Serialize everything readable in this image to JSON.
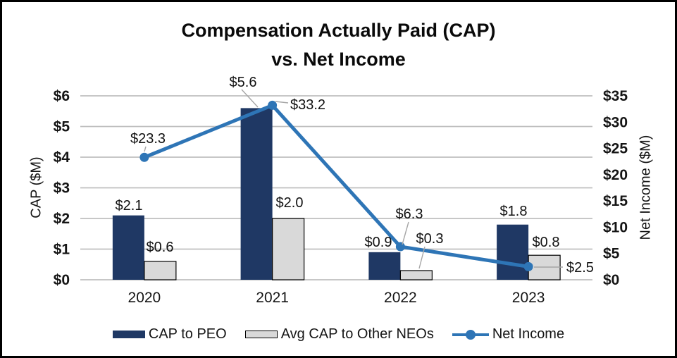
{
  "chart_data": {
    "type": "combo_bar_line",
    "title_line1": "Compensation Actually Paid (CAP)",
    "title_line2": "vs. Net Income",
    "categories": [
      "2020",
      "2021",
      "2022",
      "2023"
    ],
    "series": [
      {
        "name": "CAP to PEO",
        "kind": "bar",
        "axis": "left",
        "color": "#1f3864",
        "values": [
          2.1,
          5.6,
          0.9,
          1.8
        ],
        "labels": [
          "$2.1",
          "$5.6",
          "$0.9",
          "$1.8"
        ]
      },
      {
        "name": "Avg CAP to Other NEOs",
        "kind": "bar",
        "axis": "left",
        "color": "#d9d9d9",
        "border_color": "#000000",
        "values": [
          0.6,
          2.0,
          0.3,
          0.8
        ],
        "labels": [
          "$0.6",
          "$2.0",
          "$0.3",
          "$0.8"
        ]
      },
      {
        "name": "Net Income",
        "kind": "line",
        "axis": "right",
        "color": "#2e75b6",
        "values": [
          23.3,
          33.2,
          6.3,
          2.5
        ],
        "labels": [
          "$23.3",
          "$33.2",
          "$6.3",
          "$2.5"
        ]
      }
    ],
    "left_axis": {
      "title": "CAP ($M)",
      "min": 0,
      "max": 6,
      "tick_step": 1,
      "ticks": [
        "$0",
        "$1",
        "$2",
        "$3",
        "$4",
        "$5",
        "$6"
      ]
    },
    "right_axis": {
      "title": "Net Income ($M)",
      "min": 0,
      "max": 35,
      "tick_step": 5,
      "ticks": [
        "$0",
        "$5",
        "$10",
        "$15",
        "$20",
        "$25",
        "$30",
        "$35"
      ]
    },
    "grid": "horizontal",
    "gridline_color": "#bfbfbf",
    "leader_line_color": "#a6a6a6",
    "text_color": "#151515",
    "legend_position": "bottom"
  }
}
